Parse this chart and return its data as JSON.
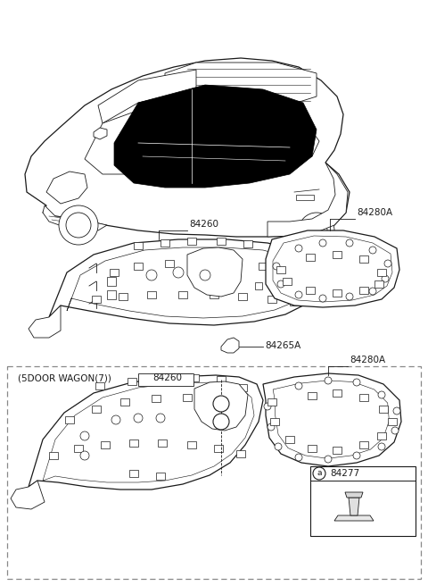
{
  "bg_color": "#ffffff",
  "line_color": "#1a1a1a",
  "gray": "#666666",
  "dashed_color": "#888888",
  "fig_width": 4.8,
  "fig_height": 6.56,
  "dpi": 100,
  "labels": {
    "84260_top": "84260",
    "84280A_top": "84280A",
    "84265A": "84265A",
    "5door": "(5DOOR WAGON(7))",
    "84260_bot": "84260",
    "84280A_bot": "84280A",
    "84277": "84277",
    "a_label": "a"
  }
}
